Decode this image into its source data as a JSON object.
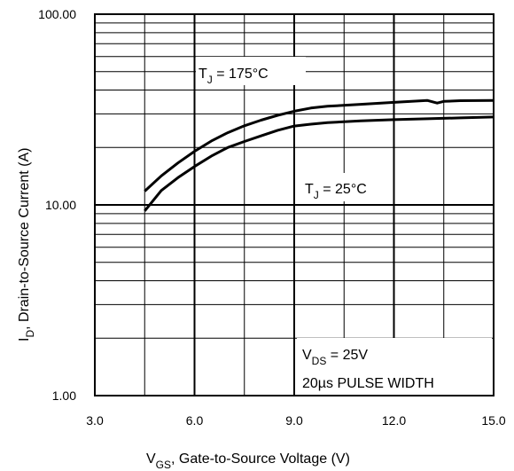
{
  "chart_data": {
    "type": "line",
    "y_scale": "log",
    "grid": true,
    "xlim": [
      3.0,
      15.0
    ],
    "ylim": [
      1.0,
      100.0
    ],
    "x_tick_labels": [
      "3.0",
      "6.0",
      "9.0",
      "12.0",
      "15.0"
    ],
    "y_tick_labels": [
      "1.00",
      "10.00",
      "100.00"
    ],
    "xlabel": {
      "main": "V",
      "sub": "GS",
      "rest": ", Gate-to-Source Voltage (V)"
    },
    "ylabel": {
      "main": "I",
      "sub": "D",
      "rest": ", Drain-to-Source Current  (A)"
    },
    "annotations": {
      "tj175": {
        "main": "T",
        "sub": "J",
        "rest": " = 175°C"
      },
      "tj25": {
        "main": "T",
        "sub": "J",
        "rest": " = 25°C"
      },
      "vds": {
        "main": "V",
        "sub": "DS",
        "rest": " = 25V"
      },
      "pulse": "20µs PULSE WIDTH"
    },
    "series": [
      {
        "x": [
          4.5,
          5.0,
          5.5,
          6.0,
          6.5,
          7.0,
          7.5,
          8.0,
          8.5,
          9.0,
          9.5,
          10.0,
          11.0,
          12.0,
          13.0,
          13.3,
          13.5,
          14.0,
          15.0
        ],
        "y": [
          11.8,
          14.2,
          16.6,
          19.1,
          21.6,
          23.9,
          26.0,
          27.8,
          29.5,
          31.0,
          32.2,
          32.9,
          33.7,
          34.5,
          35.3,
          34.2,
          34.9,
          35.2,
          35.3
        ]
      },
      {
        "x": [
          4.5,
          5.0,
          5.5,
          6.0,
          6.5,
          7.0,
          7.5,
          8.0,
          8.5,
          9.0,
          9.5,
          10.0,
          11.0,
          12.0,
          13.0,
          14.0,
          15.0
        ],
        "y": [
          9.3,
          11.9,
          13.9,
          15.9,
          18.0,
          20.0,
          21.5,
          23.0,
          24.6,
          25.9,
          26.5,
          27.0,
          27.6,
          28.0,
          28.3,
          28.6,
          28.9
        ]
      }
    ]
  }
}
